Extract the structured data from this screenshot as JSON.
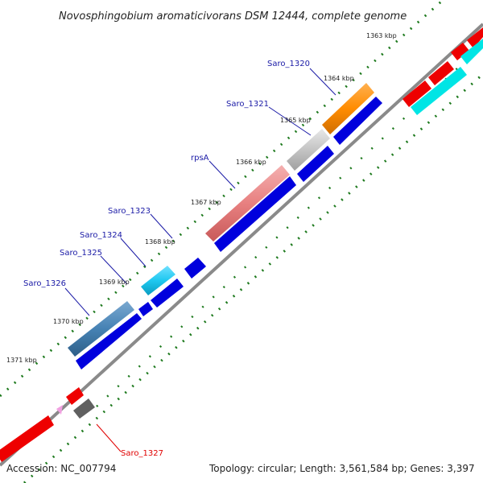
{
  "title": "Novosphingobium aromaticivorans DSM 12444, complete genome",
  "ticks": [
    "1363 kbp",
    "1364 kbp",
    "1365 kbp",
    "1366 kbp",
    "1367 kbp",
    "1368 kbp",
    "1369 kbp",
    "1370 kbp",
    "1371 kbp"
  ],
  "genes": {
    "saro_1320": "Saro_1320",
    "saro_1321": "Saro_1321",
    "rpsA": "rpsA",
    "saro_1323": "Saro_1323",
    "saro_1324": "Saro_1324",
    "saro_1325": "Saro_1325",
    "saro_1326": "Saro_1326",
    "saro_1327": "Saro_1327"
  },
  "footer": {
    "accession": "Accession: NC_007794",
    "summary": "Topology: circular; Length: 3,561,584 bp; Genes: 3,397"
  },
  "colors": {
    "backbone": "#888888",
    "dots": "#1e7a1e",
    "cds_forward": "#0000dd",
    "cds_reverse": "#ee0000",
    "cyan": "#00e5e5",
    "orange": "#ff8c00",
    "salmon": "#e88080",
    "steelblue": "#4682b4",
    "skyblue": "#1ec8f0",
    "gray": "#bfbfbf",
    "darkgray": "#606060",
    "pink": "#f0a0e0",
    "label_blue": "#1a1aa6",
    "label_red": "#e00000"
  }
}
